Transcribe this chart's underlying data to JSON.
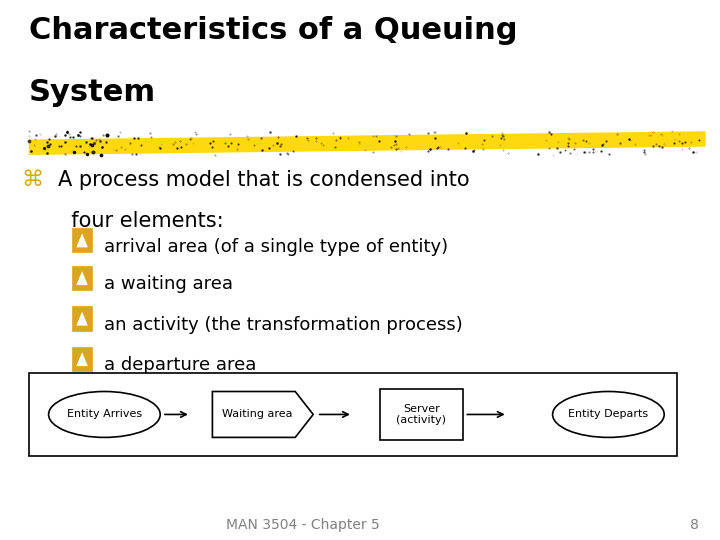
{
  "title_line1": "Characteristics of a Queuing",
  "title_line2": "System",
  "title_fontsize": 22,
  "title_color": "#000000",
  "bg_color": "#ffffff",
  "highlighter_color": "#FFD700",
  "bullet1_symbol": "⌘",
  "bullet1_fontsize": 16,
  "bullet1_text_line1": "A process model that is condensed into",
  "bullet1_text_line2": "  four elements:",
  "bullet1_text_fontsize": 15,
  "sub_bullet_symbol": "⛶",
  "sub_bullets": [
    "arrival area (of a single type of entity)",
    "a waiting area",
    "an activity (the transformation process)",
    "a departure area"
  ],
  "sub_bullet_fontsize": 13,
  "sub_bullet_color": "#DAA520",
  "footer_text": "MAN 3504 - Chapter 5",
  "footer_page": "8",
  "footer_fontsize": 10,
  "footer_color": "#808080"
}
